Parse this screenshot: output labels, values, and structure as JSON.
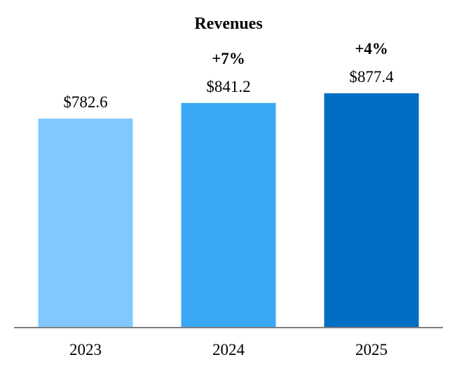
{
  "chart_data": {
    "type": "bar",
    "title": "Revenues",
    "categories": [
      "2023",
      "2024",
      "2025"
    ],
    "values": [
      782.6,
      841.2,
      877.4
    ],
    "value_labels": [
      "$782.6",
      "$841.2",
      "$877.4"
    ],
    "growth_labels": [
      "",
      "+7%",
      "+4%"
    ],
    "colors": [
      "#80c8ff",
      "#3aa8f5",
      "#006ec2"
    ],
    "axis_color": "#7f7f7f",
    "grid": false,
    "ylim": [
      0,
      877.4
    ]
  }
}
